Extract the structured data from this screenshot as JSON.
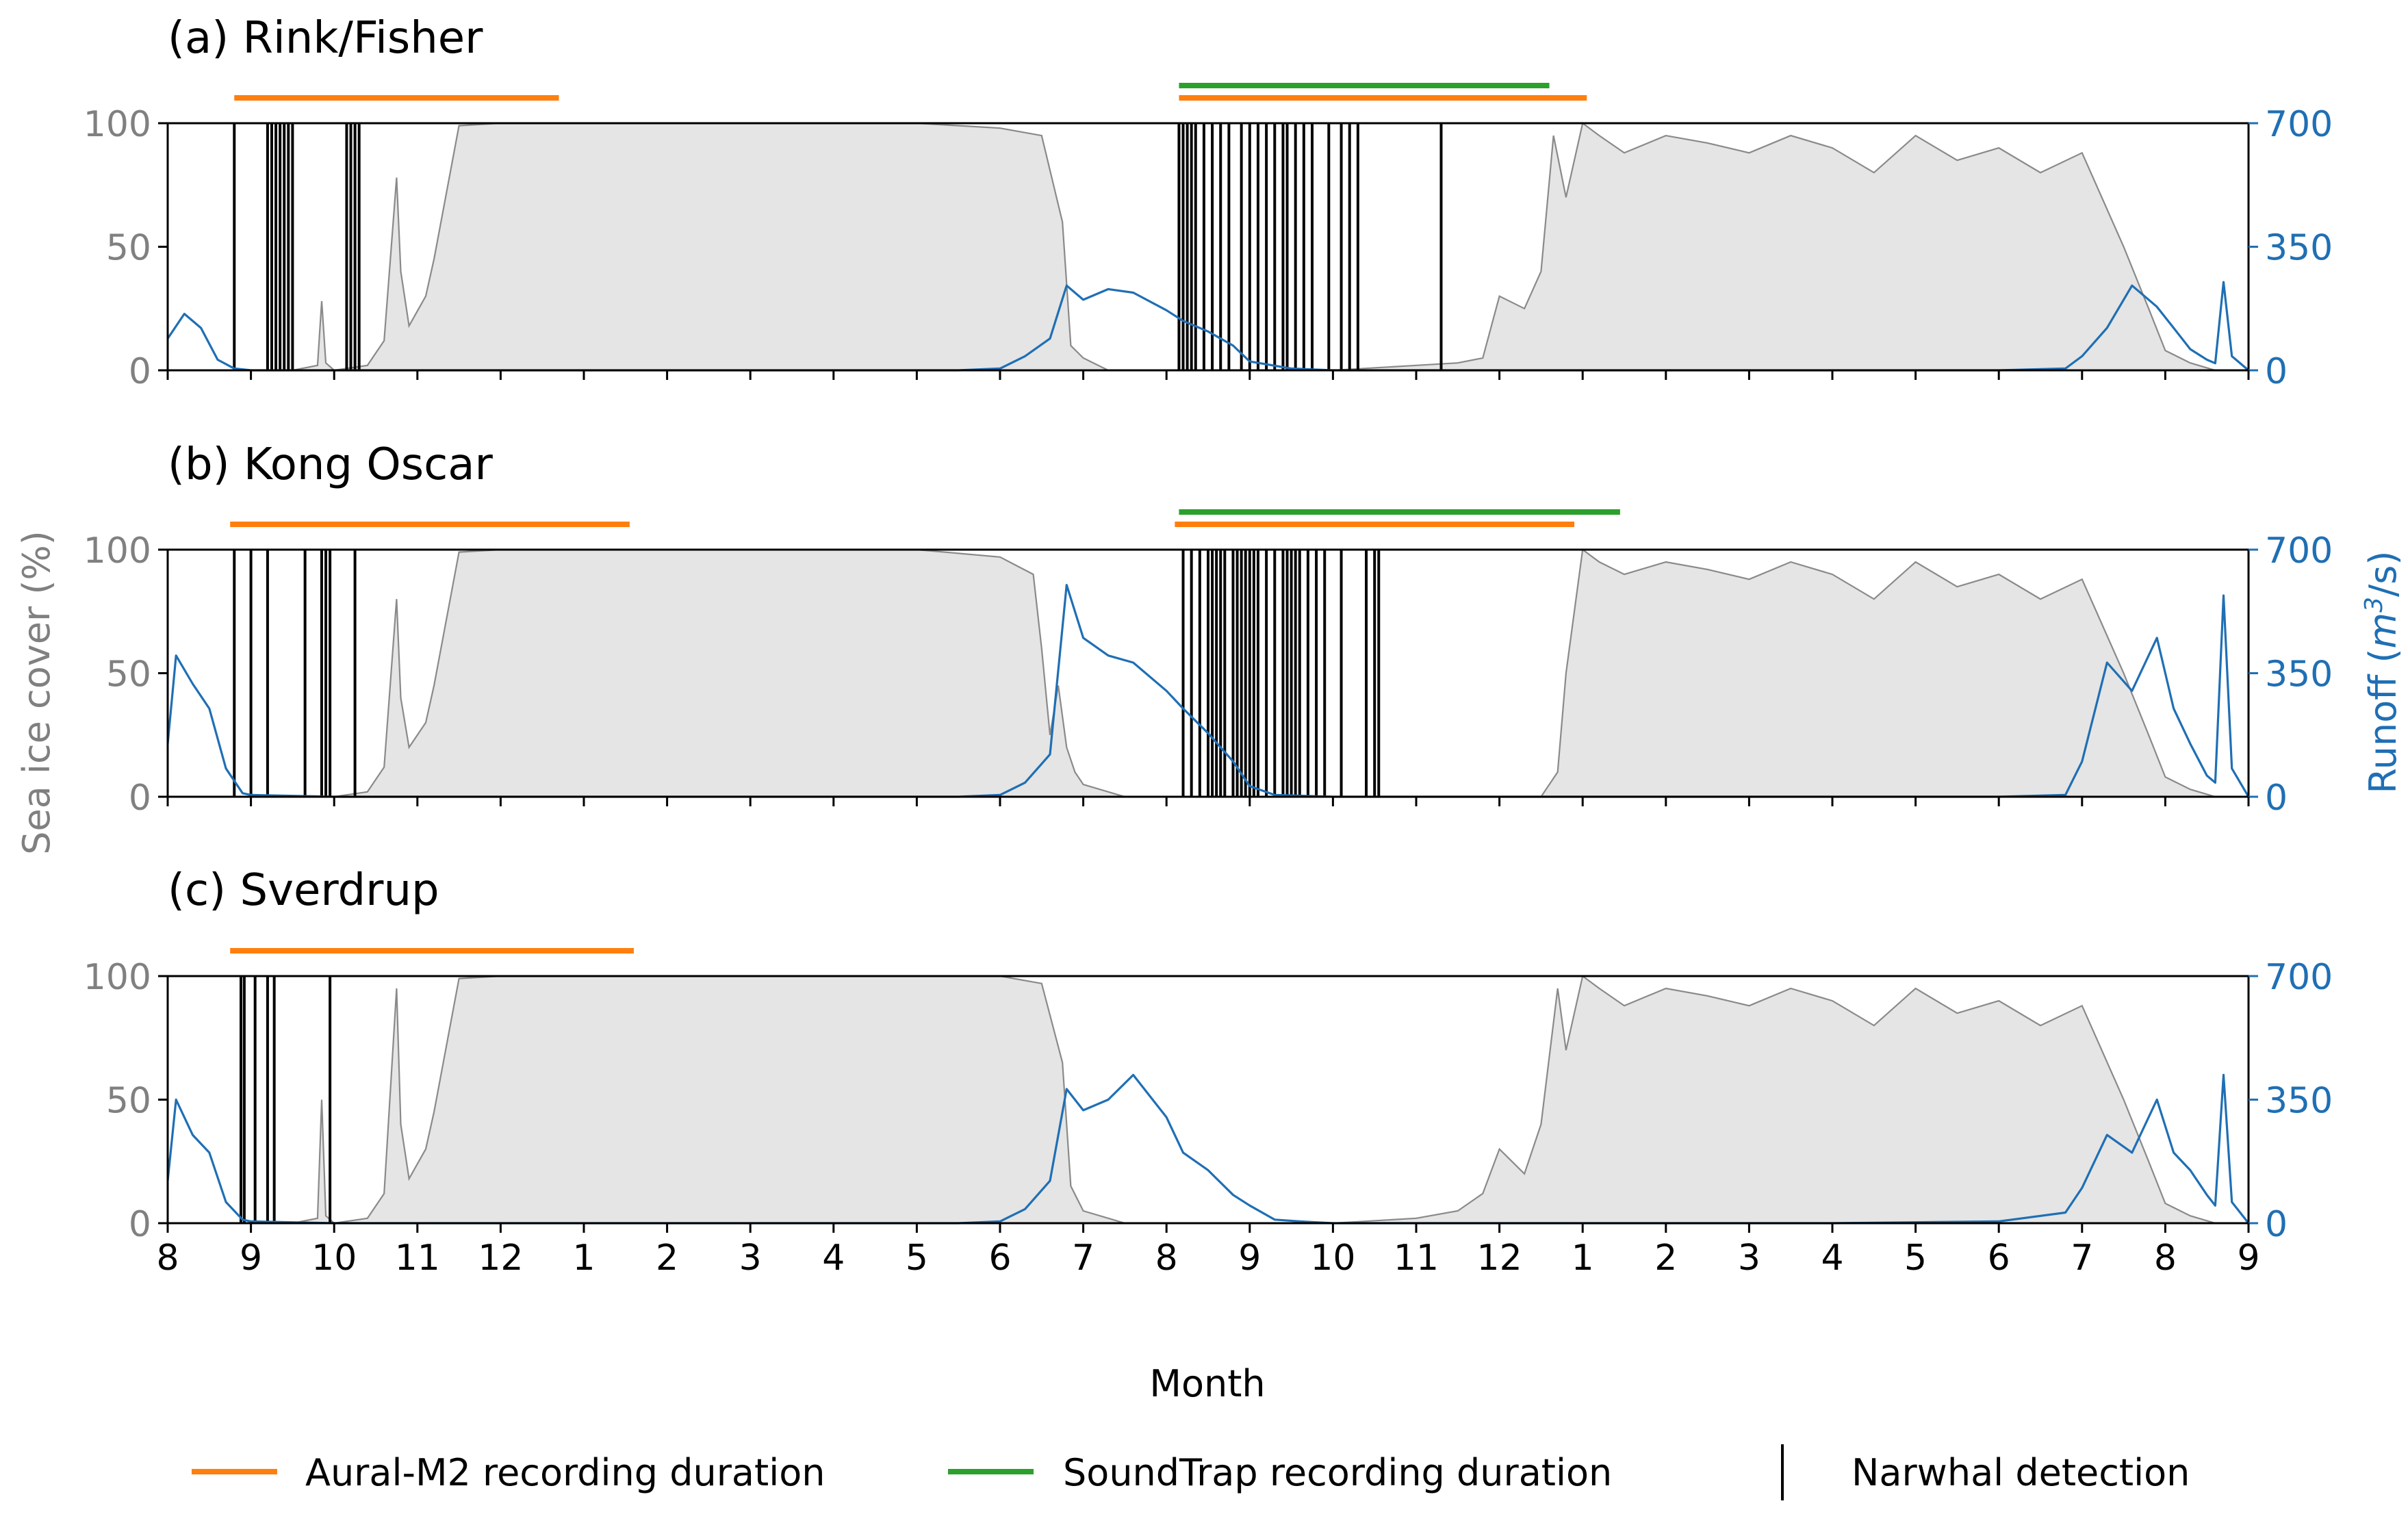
{
  "figure": {
    "x_axis_label": "Month",
    "left_axis_label": "Sea ice cover (%)",
    "right_axis_label_prefix": "Runoff (",
    "right_axis_label_unit": "m",
    "right_axis_label_sup": "3",
    "right_axis_label_suffix": "/s)",
    "month_ticks": [
      "8",
      "9",
      "10",
      "11",
      "12",
      "1",
      "2",
      "3",
      "4",
      "5",
      "6",
      "7",
      "8",
      "9",
      "10",
      "11",
      "12",
      "1",
      "2",
      "3",
      "4",
      "5",
      "6",
      "7",
      "8",
      "9"
    ],
    "left_ticks": [
      "0",
      "50",
      "100"
    ],
    "right_ticks": [
      "0",
      "350",
      "700"
    ],
    "colors": {
      "ice_fill": "#e5e5e5",
      "ice_line": "#8a8a8a",
      "runoff": "#1f6fb4",
      "aural": "#ff7f0e",
      "soundtrap": "#2ca02c",
      "detection": "#000000",
      "left_axis_text": "#808080",
      "right_axis_text": "#1f6fb4"
    },
    "legend": {
      "aural": "Aural-M2 recording duration",
      "soundtrap": "SoundTrap recording duration",
      "detection": "Narwhal detection"
    }
  },
  "chart_data": [
    {
      "type": "area",
      "title": "(a) Rink/Fisher",
      "x_unit": "months since August (year 1)",
      "xlim": [
        0,
        25
      ],
      "ylim_left": [
        0,
        100
      ],
      "ylim_right": [
        0,
        700
      ],
      "aural_periods": [
        [
          0.8,
          4.7
        ],
        [
          12.15,
          17.05
        ]
      ],
      "soundtrap_periods": [
        [
          12.15,
          16.6
        ]
      ],
      "detections": [
        0.8,
        1.2,
        1.25,
        1.3,
        1.35,
        1.4,
        1.45,
        1.5,
        2.15,
        2.2,
        2.25,
        2.3,
        12.15,
        12.2,
        12.25,
        12.3,
        12.35,
        12.45,
        12.55,
        12.65,
        12.75,
        12.9,
        13.0,
        13.1,
        13.2,
        13.3,
        13.4,
        13.45,
        13.55,
        13.65,
        13.75,
        13.95,
        14.1,
        14.2,
        14.3,
        15.3
      ],
      "sea_ice": {
        "x": [
          0,
          0.5,
          1.0,
          1.5,
          1.8,
          1.85,
          1.9,
          2.0,
          2.4,
          2.6,
          2.75,
          2.8,
          2.9,
          3.1,
          3.2,
          3.5,
          4.0,
          5.0,
          6.0,
          7.0,
          8.0,
          9.0,
          10.0,
          10.5,
          10.75,
          10.85,
          11.0,
          11.3,
          11.5,
          12.0,
          13.0,
          14.0,
          15.0,
          15.5,
          15.8,
          16.0,
          16.3,
          16.5,
          16.65,
          16.8,
          17.0,
          17.2,
          17.5,
          18.0,
          18.5,
          19.0,
          19.5,
          20.0,
          20.5,
          21.0,
          21.5,
          22.0,
          22.5,
          23.0,
          23.5,
          23.8,
          24.0,
          24.3,
          24.6,
          25.0
        ],
        "values": [
          0,
          0,
          0,
          0,
          2,
          28,
          3,
          0,
          2,
          12,
          78,
          40,
          18,
          30,
          45,
          99,
          100,
          100,
          100,
          100,
          100,
          100,
          98,
          95,
          60,
          10,
          5,
          0,
          0,
          0,
          0,
          0,
          2,
          3,
          5,
          30,
          25,
          40,
          95,
          70,
          100,
          95,
          88,
          95,
          92,
          88,
          95,
          90,
          80,
          95,
          85,
          90,
          80,
          88,
          50,
          25,
          8,
          3,
          0,
          0
        ]
      },
      "runoff": {
        "x": [
          0,
          0.2,
          0.4,
          0.6,
          0.8,
          1.0,
          2.0,
          4.0,
          6.0,
          8.0,
          9.5,
          10.0,
          10.3,
          10.6,
          10.8,
          11.0,
          11.3,
          11.6,
          12.0,
          12.2,
          12.5,
          12.8,
          13.0,
          13.5,
          14.0,
          16.0,
          18.0,
          20.0,
          22.0,
          22.8,
          23.0,
          23.3,
          23.6,
          23.9,
          24.1,
          24.3,
          24.5,
          24.6,
          24.7,
          24.8,
          25.0
        ],
        "values": [
          90,
          160,
          120,
          30,
          5,
          0,
          0,
          0,
          0,
          0,
          0,
          5,
          40,
          90,
          240,
          200,
          230,
          220,
          170,
          140,
          110,
          70,
          25,
          5,
          0,
          0,
          0,
          0,
          0,
          5,
          40,
          120,
          240,
          180,
          120,
          60,
          30,
          20,
          250,
          40,
          0
        ]
      }
    },
    {
      "type": "area",
      "title": "(b) Kong Oscar",
      "x_unit": "months since August (year 1)",
      "xlim": [
        0,
        25
      ],
      "ylim_left": [
        0,
        100
      ],
      "ylim_right": [
        0,
        700
      ],
      "aural_periods": [
        [
          0.75,
          5.55
        ],
        [
          12.1,
          16.9
        ]
      ],
      "soundtrap_periods": [
        [
          12.15,
          17.45
        ]
      ],
      "detections": [
        0.8,
        1.0,
        1.2,
        1.65,
        1.85,
        1.9,
        1.95,
        2.25,
        12.2,
        12.3,
        12.4,
        12.5,
        12.55,
        12.6,
        12.65,
        12.7,
        12.8,
        12.85,
        12.9,
        12.95,
        13.0,
        13.05,
        13.1,
        13.2,
        13.3,
        13.4,
        13.45,
        13.5,
        13.55,
        13.6,
        13.7,
        13.8,
        13.9,
        14.1,
        14.4,
        14.5,
        14.55
      ],
      "sea_ice": {
        "x": [
          0,
          0.5,
          1.0,
          1.5,
          2.0,
          2.4,
          2.6,
          2.75,
          2.8,
          2.9,
          3.1,
          3.2,
          3.5,
          4.0,
          5.0,
          6.0,
          7.0,
          8.0,
          9.0,
          10.0,
          10.4,
          10.5,
          10.6,
          10.7,
          10.8,
          10.9,
          11.0,
          11.5,
          12.0,
          13.0,
          14.0,
          15.0,
          16.0,
          16.5,
          16.7,
          16.8,
          17.0,
          17.2,
          17.5,
          18.0,
          18.5,
          19.0,
          19.5,
          20.0,
          20.5,
          21.0,
          21.5,
          22.0,
          22.5,
          23.0,
          23.5,
          23.8,
          24.0,
          24.3,
          24.6,
          25.0
        ],
        "values": [
          0,
          0,
          0,
          0,
          0,
          2,
          12,
          80,
          40,
          20,
          30,
          45,
          99,
          100,
          100,
          100,
          100,
          100,
          100,
          97,
          90,
          60,
          25,
          45,
          20,
          10,
          5,
          0,
          0,
          0,
          0,
          0,
          0,
          0,
          10,
          50,
          100,
          95,
          90,
          95,
          92,
          88,
          95,
          90,
          80,
          95,
          85,
          90,
          80,
          88,
          50,
          25,
          8,
          3,
          0,
          0
        ]
      },
      "runoff": {
        "x": [
          0,
          0.1,
          0.3,
          0.5,
          0.7,
          0.9,
          1.0,
          2.0,
          4.0,
          6.0,
          8.0,
          9.5,
          10.0,
          10.3,
          10.6,
          10.8,
          11.0,
          11.3,
          11.6,
          12.0,
          12.2,
          12.5,
          12.8,
          13.0,
          13.3,
          14.0,
          16.0,
          18.0,
          20.0,
          22.0,
          22.8,
          23.0,
          23.3,
          23.6,
          23.9,
          24.1,
          24.3,
          24.5,
          24.6,
          24.7,
          24.8,
          25.0
        ],
        "values": [
          150,
          400,
          320,
          250,
          80,
          10,
          5,
          0,
          0,
          0,
          0,
          0,
          5,
          40,
          120,
          600,
          450,
          400,
          380,
          300,
          250,
          180,
          100,
          30,
          5,
          0,
          0,
          0,
          0,
          0,
          5,
          100,
          380,
          300,
          450,
          250,
          150,
          60,
          40,
          570,
          80,
          0
        ]
      }
    },
    {
      "type": "area",
      "title": "(c) Sverdrup",
      "x_unit": "months since August (year 1)",
      "xlim": [
        0,
        25
      ],
      "ylim_left": [
        0,
        100
      ],
      "ylim_right": [
        0,
        700
      ],
      "aural_periods": [
        [
          0.75,
          5.6
        ]
      ],
      "soundtrap_periods": [],
      "detections": [
        0.88,
        0.92,
        1.05,
        1.2,
        1.28,
        1.95
      ],
      "sea_ice": {
        "x": [
          0,
          0.5,
          1.0,
          1.5,
          1.8,
          1.85,
          1.9,
          2.0,
          2.4,
          2.6,
          2.75,
          2.8,
          2.9,
          3.1,
          3.2,
          3.5,
          4.0,
          5.0,
          6.0,
          7.0,
          8.0,
          9.0,
          10.0,
          10.5,
          10.75,
          10.85,
          11.0,
          11.5,
          12.0,
          13.0,
          14.0,
          15.0,
          15.5,
          15.8,
          16.0,
          16.3,
          16.5,
          16.7,
          16.8,
          17.0,
          17.2,
          17.5,
          18.0,
          18.5,
          19.0,
          19.5,
          20.0,
          20.5,
          21.0,
          21.5,
          22.0,
          22.5,
          23.0,
          23.5,
          23.8,
          24.0,
          24.3,
          24.6,
          25.0
        ],
        "values": [
          0,
          0,
          0,
          0,
          2,
          50,
          3,
          0,
          2,
          12,
          95,
          40,
          18,
          30,
          45,
          99,
          100,
          100,
          100,
          100,
          100,
          100,
          100,
          97,
          65,
          15,
          5,
          0,
          0,
          0,
          0,
          2,
          5,
          12,
          30,
          20,
          40,
          95,
          70,
          100,
          95,
          88,
          95,
          92,
          88,
          95,
          90,
          80,
          95,
          85,
          90,
          80,
          88,
          50,
          25,
          8,
          3,
          0,
          0
        ]
      },
      "runoff": {
        "x": [
          0,
          0.1,
          0.3,
          0.5,
          0.7,
          0.9,
          1.0,
          2.0,
          4.0,
          6.0,
          8.0,
          9.5,
          10.0,
          10.3,
          10.6,
          10.8,
          11.0,
          11.3,
          11.6,
          12.0,
          12.2,
          12.5,
          12.8,
          13.0,
          13.3,
          13.6,
          14.0,
          16.0,
          18.0,
          20.0,
          22.0,
          22.8,
          23.0,
          23.3,
          23.6,
          23.9,
          24.1,
          24.3,
          24.5,
          24.6,
          24.7,
          24.8,
          25.0
        ],
        "values": [
          120,
          350,
          250,
          200,
          60,
          10,
          5,
          0,
          0,
          0,
          0,
          0,
          5,
          40,
          120,
          380,
          320,
          350,
          420,
          300,
          200,
          150,
          80,
          50,
          10,
          5,
          0,
          0,
          0,
          0,
          5,
          30,
          100,
          250,
          200,
          350,
          200,
          150,
          80,
          50,
          420,
          60,
          0
        ]
      }
    }
  ]
}
